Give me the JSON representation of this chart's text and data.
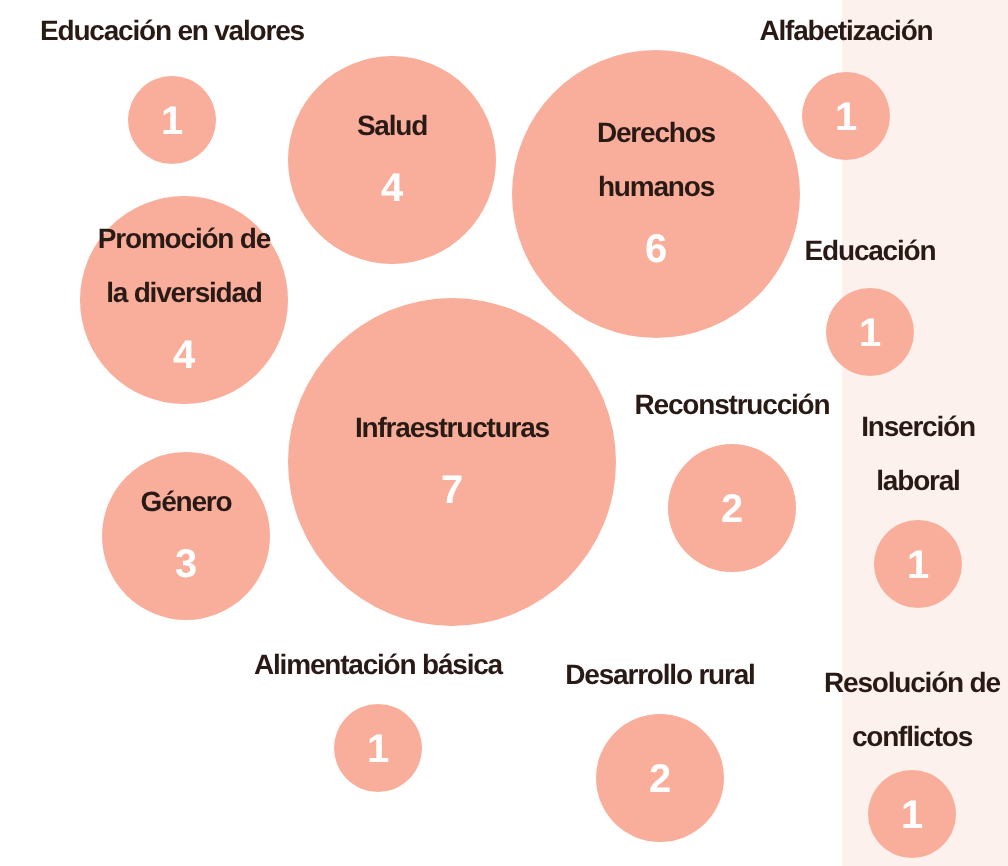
{
  "chart_data": {
    "type": "other",
    "categories": [
      "Educación en valores",
      "Salud",
      "Derechos humanos",
      "Alfabetización",
      "Promoción de la diversidad",
      "Educación",
      "Infraestructuras",
      "Reconstrucción",
      "Inserción laboral",
      "Género",
      "Alimentación básica",
      "Desarrollo rural",
      "Resolución de conflictos"
    ],
    "values": [
      1,
      4,
      6,
      1,
      4,
      1,
      7,
      2,
      1,
      3,
      1,
      2,
      1
    ],
    "color": "#f8ae9b",
    "data_labels": true
  }
}
